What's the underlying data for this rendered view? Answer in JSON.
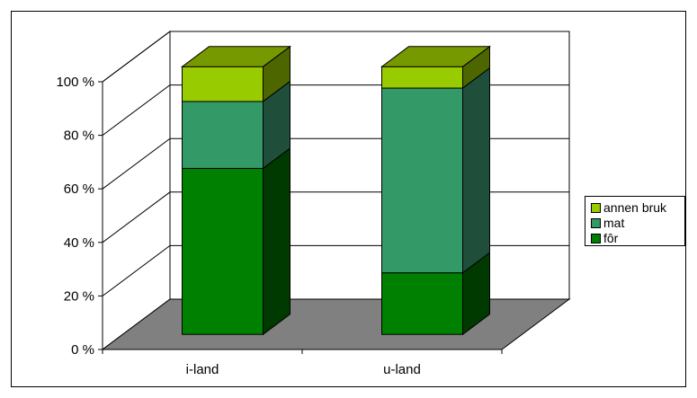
{
  "chart_data": {
    "type": "bar",
    "stacked": true,
    "percent": true,
    "three_d": true,
    "categories": [
      "i-land",
      "u-land"
    ],
    "series": [
      {
        "name": "fôr",
        "values": [
          62,
          23
        ],
        "color": "#008000",
        "side_color": "#003a00",
        "top_color": "#006400"
      },
      {
        "name": "mat",
        "values": [
          25,
          69
        ],
        "color": "#339966",
        "side_color": "#1f4f3a",
        "top_color": "#2a7a52"
      },
      {
        "name": "annen bruk",
        "values": [
          13,
          8
        ],
        "color": "#99cc00",
        "side_color": "#4d6600",
        "top_color": "#779900"
      }
    ],
    "y_ticks": [
      "0 %",
      "20 %",
      "40 %",
      "60 %",
      "80 %",
      "100 %"
    ],
    "ylim": [
      0,
      100
    ],
    "grid": true,
    "legend_position": "right",
    "floor_color": "#808080"
  }
}
